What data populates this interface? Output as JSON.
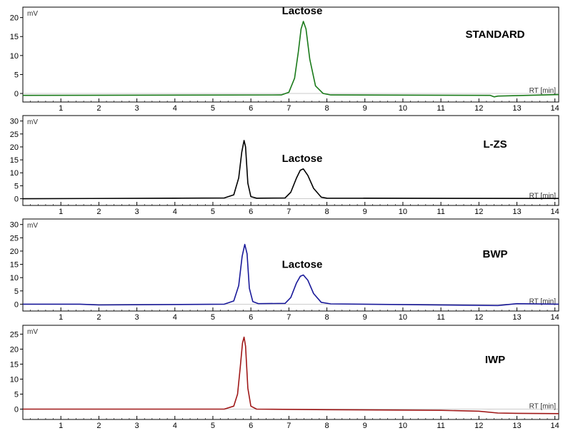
{
  "chart_data": [
    {
      "type": "line",
      "title": "STANDARD",
      "xlabel": "RT [min]",
      "ylabel": "mV",
      "xlim": [
        0,
        14.1
      ],
      "ylim": [
        -1.5,
        22
      ],
      "xticks": [
        "1",
        "2",
        "3",
        "4",
        "5",
        "6",
        "7",
        "8",
        "9",
        "10",
        "11",
        "12",
        "13",
        "14"
      ],
      "yticks": [
        "0",
        "5",
        "10",
        "15",
        "20"
      ],
      "color": "#1a7a1a",
      "annotations": [
        {
          "text": "Lactose",
          "x": 7.35,
          "y": 19.0
        }
      ],
      "series": [
        {
          "x": [
            0,
            6.8,
            7.0,
            7.15,
            7.25,
            7.32,
            7.38,
            7.45,
            7.55,
            7.7,
            7.9,
            8.1,
            12.3,
            12.4,
            12.5,
            14.1
          ],
          "y": [
            -0.5,
            -0.4,
            0.3,
            4.0,
            11.0,
            17.0,
            19.0,
            17.0,
            9.0,
            2.0,
            0.0,
            -0.4,
            -0.5,
            -0.9,
            -0.7,
            -0.3
          ]
        }
      ]
    },
    {
      "type": "line",
      "title": "L-ZS",
      "xlabel": "RT [min]",
      "ylabel": "mV",
      "xlim": [
        0,
        14.1
      ],
      "ylim": [
        -1.5,
        31
      ],
      "xticks": [
        "1",
        "2",
        "3",
        "4",
        "5",
        "6",
        "7",
        "8",
        "9",
        "10",
        "11",
        "12",
        "13",
        "14"
      ],
      "yticks": [
        "0",
        "5",
        "10",
        "15",
        "20",
        "25",
        "30"
      ],
      "color": "#000000",
      "annotations": [
        {
          "text": "Lactose",
          "x": 7.35,
          "y": 11.5
        }
      ],
      "series": [
        {
          "x": [
            0,
            4,
            5.3,
            5.55,
            5.68,
            5.76,
            5.82,
            5.86,
            5.92,
            6.0,
            6.15,
            6.9,
            7.05,
            7.2,
            7.3,
            7.38,
            7.5,
            7.65,
            7.85,
            8.0,
            14.1
          ],
          "y": [
            0,
            0.2,
            0.3,
            1.5,
            8.0,
            18.0,
            22.5,
            20.0,
            6.0,
            0.8,
            0.2,
            0.3,
            2.5,
            8.0,
            11.0,
            11.5,
            9.0,
            4.0,
            0.6,
            0.2,
            0.1
          ]
        }
      ]
    },
    {
      "type": "line",
      "title": "BWP",
      "xlabel": "RT [min]",
      "ylabel": "mV",
      "xlim": [
        0,
        14.1
      ],
      "ylim": [
        -1.5,
        31
      ],
      "xticks": [
        "1",
        "2",
        "3",
        "4",
        "5",
        "6",
        "7",
        "8",
        "9",
        "10",
        "11",
        "12",
        "13",
        "14"
      ],
      "yticks": [
        "0",
        "5",
        "10",
        "15",
        "20",
        "25",
        "30"
      ],
      "color": "#1a1a9a",
      "annotations": [
        {
          "text": "Lactose",
          "x": 7.35,
          "y": 11.0
        }
      ],
      "series": [
        {
          "x": [
            0,
            1.5,
            2.0,
            5.3,
            5.55,
            5.68,
            5.77,
            5.84,
            5.9,
            5.96,
            6.05,
            6.2,
            6.9,
            7.05,
            7.2,
            7.3,
            7.38,
            7.5,
            7.65,
            7.85,
            8.1,
            12.5,
            13.0,
            14.1
          ],
          "y": [
            0,
            0,
            -0.3,
            0,
            1.2,
            7.0,
            18.0,
            22.5,
            19.0,
            6.0,
            1.0,
            0.2,
            0.3,
            2.5,
            8.0,
            10.5,
            11.0,
            9.0,
            4.0,
            0.7,
            0.1,
            -0.5,
            0.2,
            0
          ]
        }
      ]
    },
    {
      "type": "line",
      "title": "IWP",
      "xlabel": "RT [min]",
      "ylabel": "mV",
      "xlim": [
        0,
        14.1
      ],
      "ylim": [
        -2.5,
        27
      ],
      "xticks": [
        "1",
        "2",
        "3",
        "4",
        "5",
        "6",
        "7",
        "8",
        "9",
        "10",
        "11",
        "12",
        "13",
        "14"
      ],
      "yticks": [
        "0",
        "5",
        "10",
        "15",
        "20",
        "25"
      ],
      "color": "#a01818",
      "annotations": [],
      "series": [
        {
          "x": [
            0,
            5.3,
            5.55,
            5.65,
            5.72,
            5.78,
            5.82,
            5.86,
            5.92,
            6.0,
            6.15,
            8.0,
            11.0,
            12.0,
            12.5,
            13.0,
            14.1
          ],
          "y": [
            0,
            0,
            1.0,
            5.0,
            14.0,
            22.0,
            24.0,
            21.0,
            7.0,
            1.0,
            0,
            -0.2,
            -0.4,
            -0.7,
            -1.3,
            -1.4,
            -1.5
          ]
        }
      ]
    }
  ]
}
